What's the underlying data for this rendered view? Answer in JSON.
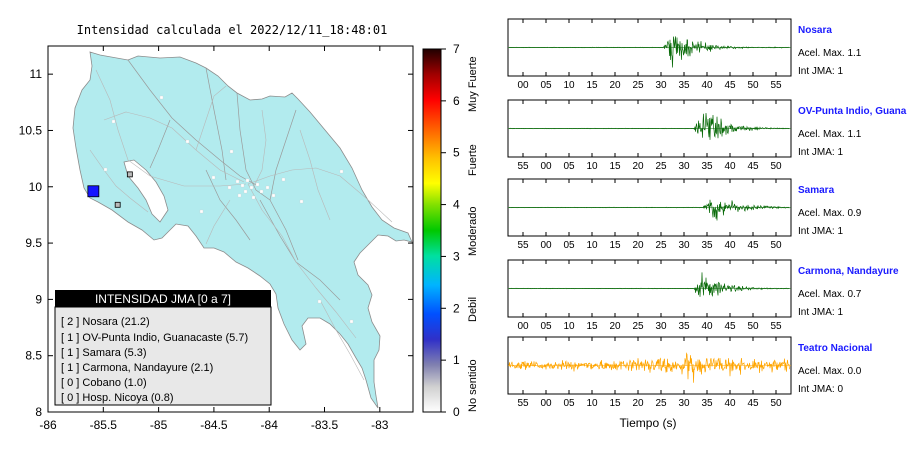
{
  "map": {
    "title": "Intensidad calculada el 2022/12/11_18:48:01",
    "x_ticks": [
      "-86",
      "-85.5",
      "-85",
      "-84.5",
      "-84",
      "-83.5",
      "-83"
    ],
    "y_ticks": [
      "11",
      "10.5",
      "10",
      "9.5",
      "9",
      "8.5",
      "8"
    ],
    "land_color": "#b2ebee",
    "markers": [
      {
        "lon": -85.59,
        "lat": 9.96,
        "intensity": 2,
        "color": "#1515ff",
        "size": "large"
      },
      {
        "lon": -85.26,
        "lat": 10.11,
        "intensity": 0,
        "color": "#bbbbbb",
        "size": "small"
      },
      {
        "lon": -85.37,
        "lat": 9.84,
        "intensity": 0,
        "color": "#bbbbbb",
        "size": "small"
      }
    ]
  },
  "legend": {
    "title": "INTENSIDAD JMA [0 a 7]",
    "items": [
      "[ 2 ]  Nosara (21.2)",
      "[ 1 ]  OV-Punta Indio, Guanacaste (5.7)",
      "[ 1 ]  Samara (5.3)",
      "[ 1 ]  Carmona, Nandayure (2.1)",
      "[ 0 ]  Cobano (1.0)",
      "[ 0 ]  Hosp. Nicoya (0.8)"
    ]
  },
  "colorbar": {
    "ticks": [
      "0",
      "1",
      "2",
      "3",
      "4",
      "5",
      "6",
      "7"
    ],
    "labels": [
      "No sentido",
      "Debil",
      "Moderado",
      "Fuerte",
      "Muy Fuerte"
    ]
  },
  "chart_data": {
    "type": "line",
    "xlabel": "Tiempo (s)",
    "series": [
      {
        "name": "Nosara",
        "acel_label": "Acel. Max. 1.1",
        "jma_label": "Int JMA: 1",
        "color": "#0a6b0a",
        "tick_labels": [
          "00",
          "05",
          "10",
          "15",
          "20",
          "25",
          "30",
          "35",
          "40",
          "45",
          "50",
          "55"
        ],
        "onset_tick": 30.5,
        "peak": 1.1
      },
      {
        "name": "OV-Punta Indio, Guana",
        "acel_label": "Acel. Max. 1.1",
        "jma_label": "Int JMA: 1",
        "color": "#0a6b0a",
        "tick_labels": [
          "55",
          "00",
          "05",
          "10",
          "15",
          "20",
          "25",
          "30",
          "35",
          "40",
          "45",
          "50"
        ],
        "onset_tick": 37.0,
        "peak": 1.1
      },
      {
        "name": "Samara",
        "acel_label": "Acel. Max. 0.9",
        "jma_label": "Int JMA: 1",
        "color": "#0a6b0a",
        "tick_labels": [
          "55",
          "00",
          "05",
          "10",
          "15",
          "20",
          "25",
          "30",
          "35",
          "40",
          "45",
          "50"
        ],
        "onset_tick": 39.0,
        "peak": 0.9
      },
      {
        "name": "Carmona, Nandayure",
        "acel_label": "Acel. Max. 0.7",
        "jma_label": "Int JMA: 1",
        "color": "#0a6b0a",
        "tick_labels": [
          "00",
          "05",
          "10",
          "15",
          "20",
          "25",
          "30",
          "35",
          "40",
          "45",
          "50",
          "55"
        ],
        "onset_tick": 37.0,
        "peak": 0.7
      },
      {
        "name": "Teatro Nacional",
        "acel_label": "Acel. Max. 0.0",
        "jma_label": "Int JMA: 0",
        "color": "#ffa500",
        "tick_labels": [
          "55",
          "00",
          "05",
          "10",
          "15",
          "20",
          "25",
          "30",
          "35",
          "40",
          "45",
          "50"
        ],
        "onset_tick": 35.0,
        "peak": 0.0
      }
    ]
  }
}
